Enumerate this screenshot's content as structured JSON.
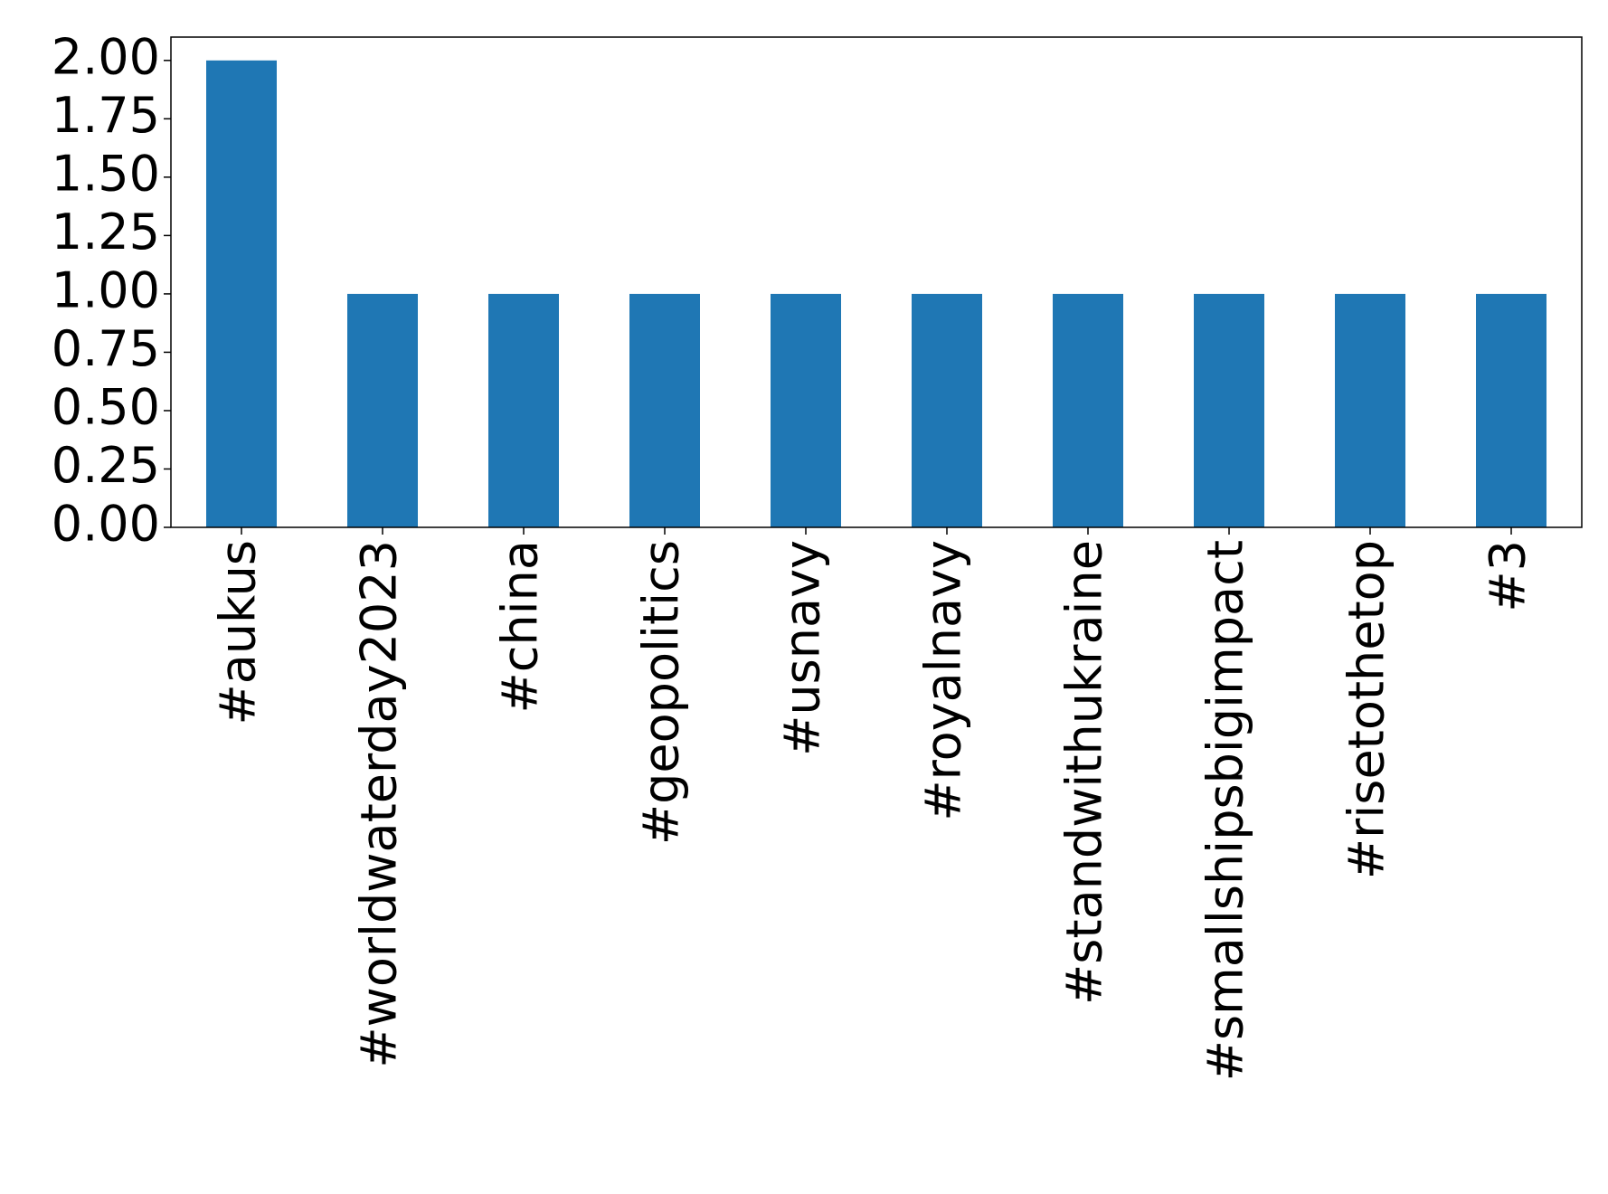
{
  "chart_data": {
    "type": "bar",
    "categories": [
      "#aukus",
      "#worldwaterday2023",
      "#china",
      "#geopolitics",
      "#usnavy",
      "#royalnavy",
      "#standwithukraine",
      "#smallshipsbigimpact",
      "#risetothetop",
      "#3"
    ],
    "values": [
      2,
      1,
      1,
      1,
      1,
      1,
      1,
      1,
      1,
      1
    ],
    "color": "#1f77b4",
    "ylim": [
      0,
      2.1
    ],
    "yticks": [
      {
        "value": 0,
        "label": "0.00"
      },
      {
        "value": 0.25,
        "label": "0.25"
      },
      {
        "value": 0.5,
        "label": "0.50"
      },
      {
        "value": 0.75,
        "label": "0.75"
      },
      {
        "value": 1,
        "label": "1.00"
      },
      {
        "value": 1.25,
        "label": "1.25"
      },
      {
        "value": 1.5,
        "label": "1.50"
      },
      {
        "value": 1.75,
        "label": "1.75"
      },
      {
        "value": 2,
        "label": "2.00"
      }
    ],
    "grid": false
  }
}
